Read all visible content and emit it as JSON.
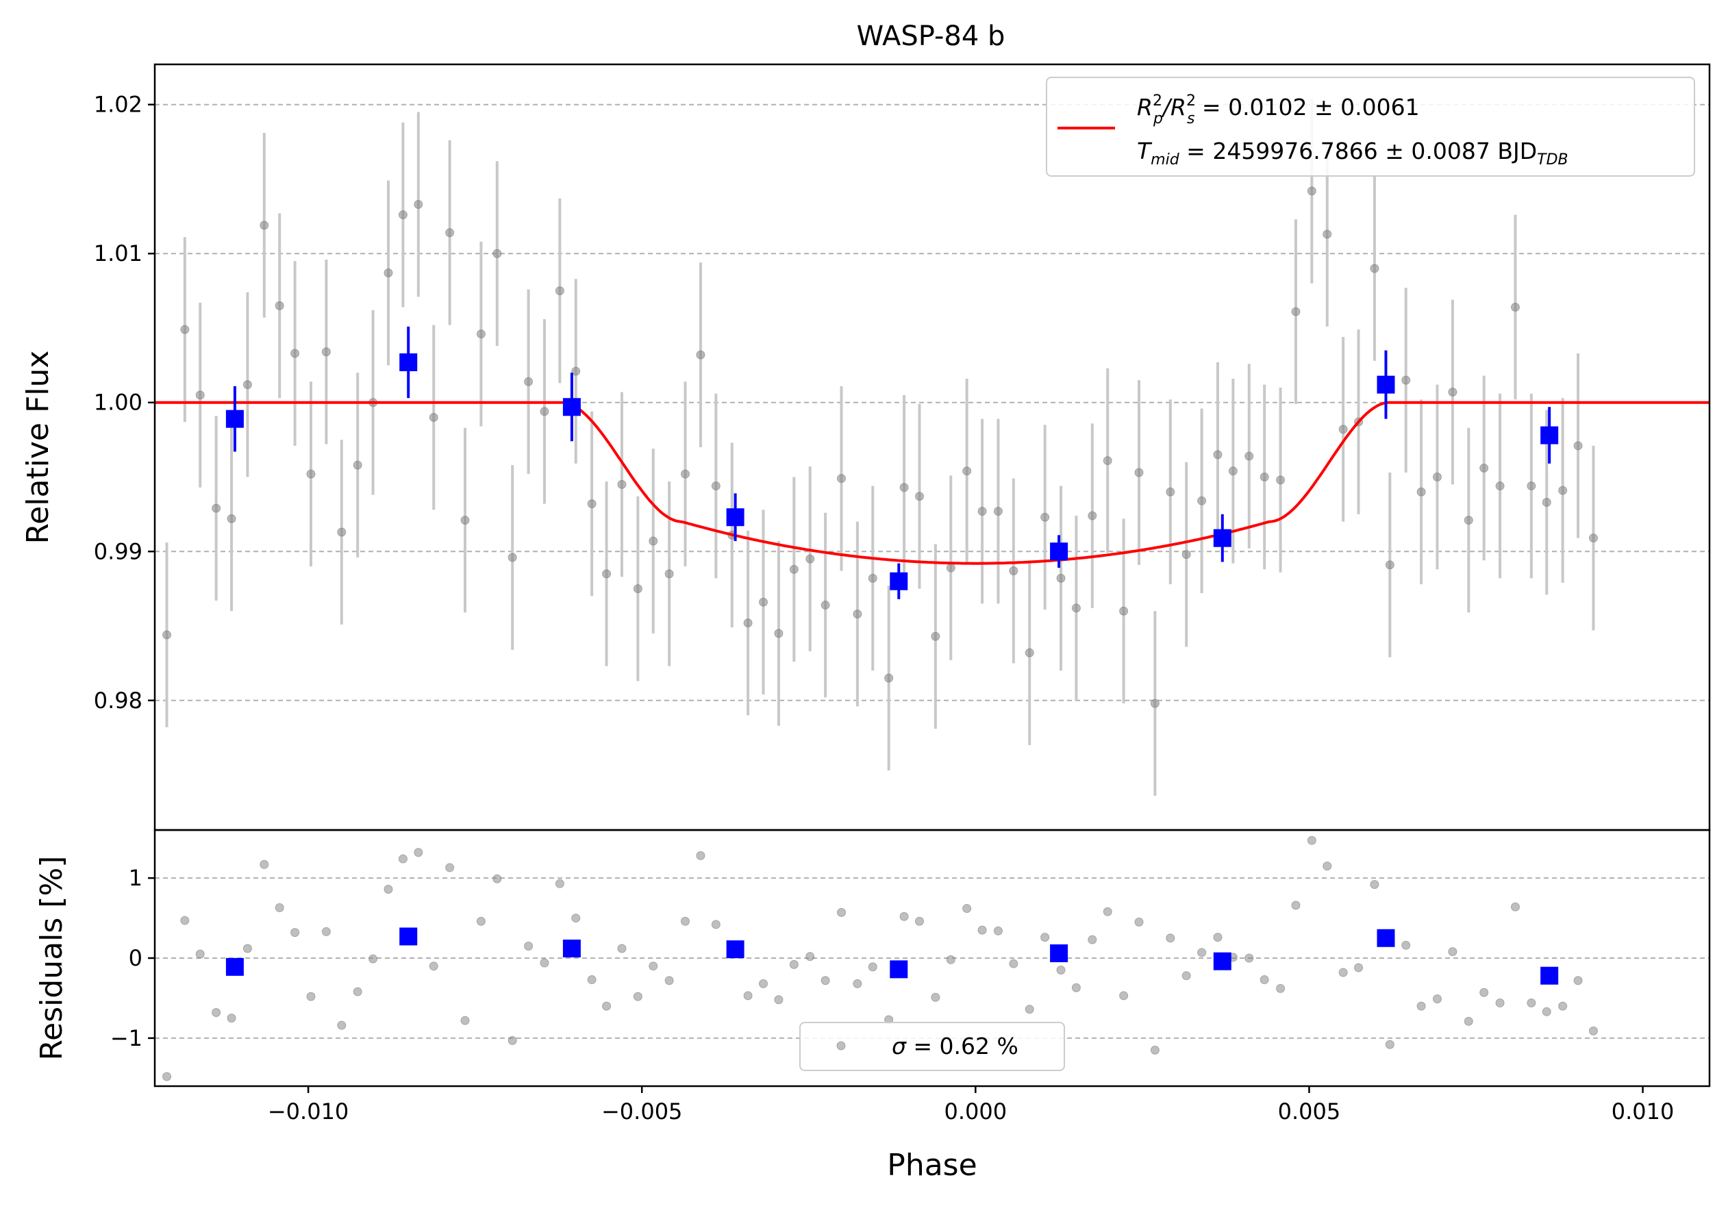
{
  "chart_data": {
    "type": "scatter",
    "title": "WASP-84 b",
    "xlabel": "Phase",
    "xlim": [
      -0.0123,
      0.011
    ],
    "xticks": [
      -0.01,
      -0.005,
      0.0,
      0.005,
      0.01
    ],
    "xtick_labels": [
      "−0.010",
      "−0.005",
      "0.000",
      "0.005",
      "0.010"
    ],
    "top": {
      "ylabel": "Relative Flux",
      "ylim": [
        0.9713,
        1.0227
      ],
      "yticks": [
        0.98,
        0.99,
        1.0,
        1.01,
        1.02
      ],
      "ytick_labels": [
        "0.98",
        "0.99",
        "1.00",
        "1.01",
        "1.02"
      ],
      "grid": true,
      "legend_position": "top-right",
      "legend": {
        "line1_lhs_main_a": "R",
        "line1_sup_a": "2",
        "line1_sub_a": "p",
        "line1_slash": "/R",
        "line1_sup_b": "2",
        "line1_sub_b": "s",
        "line1_rhs": " = 0.0102 ± 0.0061",
        "line2_main": "T",
        "line2_sub": "mid",
        "line2_rhs": " = 2459976.7866 ± 0.0087 BJD",
        "line2_unit_sub": "TDB"
      },
      "raw_points": [
        [
          -0.01233,
          0.9944,
          0.006
        ],
        [
          -0.01212,
          0.9844,
          0.0062
        ],
        [
          -0.01185,
          1.0049,
          0.0062
        ],
        [
          -0.01162,
          1.0005,
          0.0062
        ],
        [
          -0.01138,
          0.9929,
          0.0062
        ],
        [
          -0.01115,
          0.9922,
          0.0062
        ],
        [
          -0.01091,
          1.0012,
          0.0062
        ],
        [
          -0.01066,
          1.0119,
          0.0062
        ],
        [
          -0.01043,
          1.0065,
          0.0062
        ],
        [
          -0.0102,
          1.0033,
          0.0062
        ],
        [
          -0.00996,
          0.9952,
          0.0062
        ],
        [
          -0.00973,
          1.0034,
          0.0062
        ],
        [
          -0.0095,
          0.9913,
          0.0062
        ],
        [
          -0.00926,
          0.9958,
          0.0062
        ],
        [
          -0.00903,
          1.0,
          0.0062
        ],
        [
          -0.0088,
          1.0087,
          0.0062
        ],
        [
          -0.00858,
          1.0126,
          0.0062
        ],
        [
          -0.00835,
          1.0133,
          0.0062
        ],
        [
          -0.00812,
          0.999,
          0.0062
        ],
        [
          -0.00788,
          1.0114,
          0.0062
        ],
        [
          -0.00765,
          0.9921,
          0.0062
        ],
        [
          -0.00741,
          1.0046,
          0.0062
        ],
        [
          -0.00717,
          1.01,
          0.0062
        ],
        [
          -0.00694,
          0.9896,
          0.0062
        ],
        [
          -0.0067,
          1.0014,
          0.0062
        ],
        [
          -0.00646,
          0.9994,
          0.0062
        ],
        [
          -0.00623,
          1.0075,
          0.0062
        ],
        [
          -0.00599,
          1.0021,
          0.0062
        ],
        [
          -0.00575,
          0.9932,
          0.0062
        ],
        [
          -0.00553,
          0.9885,
          0.0062
        ],
        [
          -0.0053,
          0.9945,
          0.0062
        ],
        [
          -0.00506,
          0.9875,
          0.0062
        ],
        [
          -0.00483,
          0.9907,
          0.0062
        ],
        [
          -0.00459,
          0.9885,
          0.0062
        ],
        [
          -0.00435,
          0.9952,
          0.0062
        ],
        [
          -0.00412,
          1.0032,
          0.0062
        ],
        [
          -0.00389,
          0.9944,
          0.0062
        ],
        [
          -0.00365,
          0.9911,
          0.0062
        ],
        [
          -0.00341,
          0.9852,
          0.0062
        ],
        [
          -0.00318,
          0.9866,
          0.0062
        ],
        [
          -0.00295,
          0.9845,
          0.0062
        ],
        [
          -0.00272,
          0.9888,
          0.0062
        ],
        [
          -0.00248,
          0.9895,
          0.0062
        ],
        [
          -0.00225,
          0.9864,
          0.0062
        ],
        [
          -0.00201,
          0.9949,
          0.0062
        ],
        [
          -0.00177,
          0.9858,
          0.0062
        ],
        [
          -0.00154,
          0.9882,
          0.0062
        ],
        [
          -0.0013,
          0.9815,
          0.0062
        ],
        [
          -0.00107,
          0.9943,
          0.0062
        ],
        [
          -0.00084,
          0.9937,
          0.0062
        ],
        [
          -0.0006,
          0.9843,
          0.0062
        ],
        [
          -0.00037,
          0.9889,
          0.0062
        ],
        [
          -0.00013,
          0.9954,
          0.0062
        ],
        [
          0.0001,
          0.9927,
          0.0062
        ],
        [
          0.00034,
          0.9927,
          0.0062
        ],
        [
          0.00057,
          0.9887,
          0.0062
        ],
        [
          0.00081,
          0.9832,
          0.0062
        ],
        [
          0.00104,
          0.9923,
          0.0062
        ],
        [
          0.00128,
          0.9882,
          0.0062
        ],
        [
          0.00151,
          0.9862,
          0.0062
        ],
        [
          0.00175,
          0.9924,
          0.0062
        ],
        [
          0.00198,
          0.9961,
          0.0062
        ],
        [
          0.00222,
          0.986,
          0.0062
        ],
        [
          0.00245,
          0.9953,
          0.0062
        ],
        [
          0.00269,
          0.9798,
          0.0062
        ],
        [
          0.00292,
          0.994,
          0.0062
        ],
        [
          0.00316,
          0.9898,
          0.0062
        ],
        [
          0.00339,
          0.9934,
          0.0062
        ],
        [
          0.00363,
          0.9965,
          0.0062
        ],
        [
          0.00386,
          0.9954,
          0.0062
        ],
        [
          0.0041,
          0.9964,
          0.0062
        ],
        [
          0.00433,
          0.995,
          0.0062
        ],
        [
          0.00457,
          0.9948,
          0.0062
        ],
        [
          0.0048,
          1.0061,
          0.0062
        ],
        [
          0.00504,
          1.0142,
          0.0062
        ],
        [
          0.00527,
          1.0113,
          0.0062
        ],
        [
          0.00551,
          0.9982,
          0.0062
        ],
        [
          0.00574,
          0.9987,
          0.0062
        ],
        [
          0.00598,
          1.009,
          0.0062
        ],
        [
          0.00621,
          0.9891,
          0.0062
        ],
        [
          0.00645,
          1.0015,
          0.0062
        ],
        [
          0.00668,
          0.994,
          0.0062
        ],
        [
          0.00692,
          0.995,
          0.0062
        ],
        [
          0.00715,
          1.0007,
          0.0062
        ],
        [
          0.00739,
          0.9921,
          0.0062
        ],
        [
          0.00762,
          0.9956,
          0.0062
        ],
        [
          0.00786,
          0.9944,
          0.0062
        ],
        [
          0.00809,
          1.0064,
          0.0062
        ],
        [
          0.00833,
          0.9944,
          0.0062
        ],
        [
          0.00856,
          0.9933,
          0.0062
        ],
        [
          0.0088,
          0.9941,
          0.0062
        ],
        [
          0.00903,
          0.9971,
          0.0062
        ],
        [
          0.00926,
          0.9909,
          0.0062
        ]
      ],
      "binned_points": [
        [
          -0.0111,
          0.9989,
          0.0022
        ],
        [
          -0.0085,
          1.0027,
          0.0024
        ],
        [
          -0.00605,
          0.9997,
          0.0023
        ],
        [
          -0.0036,
          0.9923,
          0.0016
        ],
        [
          -0.00115,
          0.988,
          0.0012
        ],
        [
          0.00125,
          0.99,
          0.0011
        ],
        [
          0.0037,
          0.9909,
          0.0016
        ],
        [
          0.00615,
          1.0012,
          0.0023
        ],
        [
          0.0086,
          0.9978,
          0.0019
        ]
      ],
      "model": {
        "label": "transit model",
        "baseline": 1.0,
        "depth": 0.0108,
        "t1": 0.0062,
        "t2": 0.0044
      }
    },
    "bottom": {
      "ylabel": "Residuals [%]",
      "ylim": [
        -1.6,
        1.6
      ],
      "yticks": [
        -1,
        0,
        1
      ],
      "ytick_labels": [
        "−1",
        "0",
        "1"
      ],
      "grid": true,
      "legend_position": "bottom-center",
      "legend_sigma": "σ",
      "legend_text": " = 0.62 %",
      "raw_residuals": [
        [
          -0.01233,
          -0.54
        ],
        [
          -0.01212,
          -1.48
        ],
        [
          -0.01185,
          0.47
        ],
        [
          -0.01162,
          0.05
        ],
        [
          -0.01138,
          -0.68
        ],
        [
          -0.01115,
          -0.75
        ],
        [
          -0.01091,
          0.12
        ],
        [
          -0.01066,
          1.17
        ],
        [
          -0.01043,
          0.63
        ],
        [
          -0.0102,
          0.32
        ],
        [
          -0.00996,
          -0.48
        ],
        [
          -0.00973,
          0.33
        ],
        [
          -0.0095,
          -0.84
        ],
        [
          -0.00926,
          -0.42
        ],
        [
          -0.00903,
          -0.01
        ],
        [
          -0.0088,
          0.86
        ],
        [
          -0.00858,
          1.24
        ],
        [
          -0.00835,
          1.32
        ],
        [
          -0.00812,
          -0.1
        ],
        [
          -0.00788,
          1.13
        ],
        [
          -0.00765,
          -0.78
        ],
        [
          -0.00741,
          0.46
        ],
        [
          -0.00717,
          0.99
        ],
        [
          -0.00694,
          -1.03
        ],
        [
          -0.0067,
          0.15
        ],
        [
          -0.00646,
          -0.06
        ],
        [
          -0.00623,
          0.93
        ],
        [
          -0.00599,
          0.5
        ],
        [
          -0.00575,
          -0.27
        ],
        [
          -0.00553,
          -0.6
        ],
        [
          -0.0053,
          0.12
        ],
        [
          -0.00506,
          -0.48
        ],
        [
          -0.00483,
          -0.1
        ],
        [
          -0.00459,
          -0.28
        ],
        [
          -0.00435,
          0.46
        ],
        [
          -0.00412,
          1.28
        ],
        [
          -0.00389,
          0.42
        ],
        [
          -0.00365,
          0.11
        ],
        [
          -0.00341,
          -0.47
        ],
        [
          -0.00318,
          -0.32
        ],
        [
          -0.00295,
          -0.52
        ],
        [
          -0.00272,
          -0.08
        ],
        [
          -0.00248,
          0.02
        ],
        [
          -0.00225,
          -0.28
        ],
        [
          -0.00201,
          0.57
        ],
        [
          -0.00177,
          -0.32
        ],
        [
          -0.00154,
          -0.11
        ],
        [
          -0.0013,
          -0.77
        ],
        [
          -0.00107,
          0.52
        ],
        [
          -0.00084,
          0.46
        ],
        [
          -0.0006,
          -0.49
        ],
        [
          -0.00037,
          -0.02
        ],
        [
          -0.00013,
          0.62
        ],
        [
          0.0001,
          0.35
        ],
        [
          0.00034,
          0.34
        ],
        [
          0.00057,
          -0.07
        ],
        [
          0.00081,
          -0.64
        ],
        [
          0.00104,
          0.26
        ],
        [
          0.00128,
          -0.15
        ],
        [
          0.00151,
          -0.37
        ],
        [
          0.00175,
          0.23
        ],
        [
          0.00198,
          0.58
        ],
        [
          0.00222,
          -0.47
        ],
        [
          0.00245,
          0.45
        ],
        [
          0.00269,
          -1.15
        ],
        [
          0.00292,
          0.25
        ],
        [
          0.00316,
          -0.22
        ],
        [
          0.00339,
          0.07
        ],
        [
          0.00363,
          0.26
        ],
        [
          0.00386,
          0.01
        ],
        [
          0.0041,
          0.0
        ],
        [
          0.00433,
          -0.27
        ],
        [
          0.00457,
          -0.38
        ],
        [
          0.0048,
          0.66
        ],
        [
          0.00504,
          1.47
        ],
        [
          0.00527,
          1.15
        ],
        [
          0.00551,
          -0.18
        ],
        [
          0.00574,
          -0.12
        ],
        [
          0.00598,
          0.92
        ],
        [
          0.00621,
          -1.08
        ],
        [
          0.00645,
          0.16
        ],
        [
          0.00668,
          -0.6
        ],
        [
          0.00692,
          -0.51
        ],
        [
          0.00715,
          0.08
        ],
        [
          0.00739,
          -0.79
        ],
        [
          0.00762,
          -0.43
        ],
        [
          0.00786,
          -0.56
        ],
        [
          0.00809,
          0.64
        ],
        [
          0.00833,
          -0.56
        ],
        [
          0.00856,
          -0.67
        ],
        [
          0.0088,
          -0.6
        ],
        [
          0.00903,
          -0.28
        ],
        [
          0.00926,
          -0.91
        ]
      ],
      "binned_residuals": [
        [
          -0.0111,
          -0.11
        ],
        [
          -0.0085,
          0.27
        ],
        [
          -0.00605,
          0.12
        ],
        [
          -0.0036,
          0.11
        ],
        [
          -0.00115,
          -0.14
        ],
        [
          0.00125,
          0.06
        ],
        [
          0.0037,
          -0.04
        ],
        [
          0.00615,
          0.25
        ],
        [
          0.0086,
          -0.22
        ]
      ]
    },
    "colors": {
      "raw": "#808080",
      "raw_err": "#c8c8c8",
      "binned": "#0000ff",
      "model": "#ff0000",
      "grid": "#b0b0b0"
    }
  }
}
